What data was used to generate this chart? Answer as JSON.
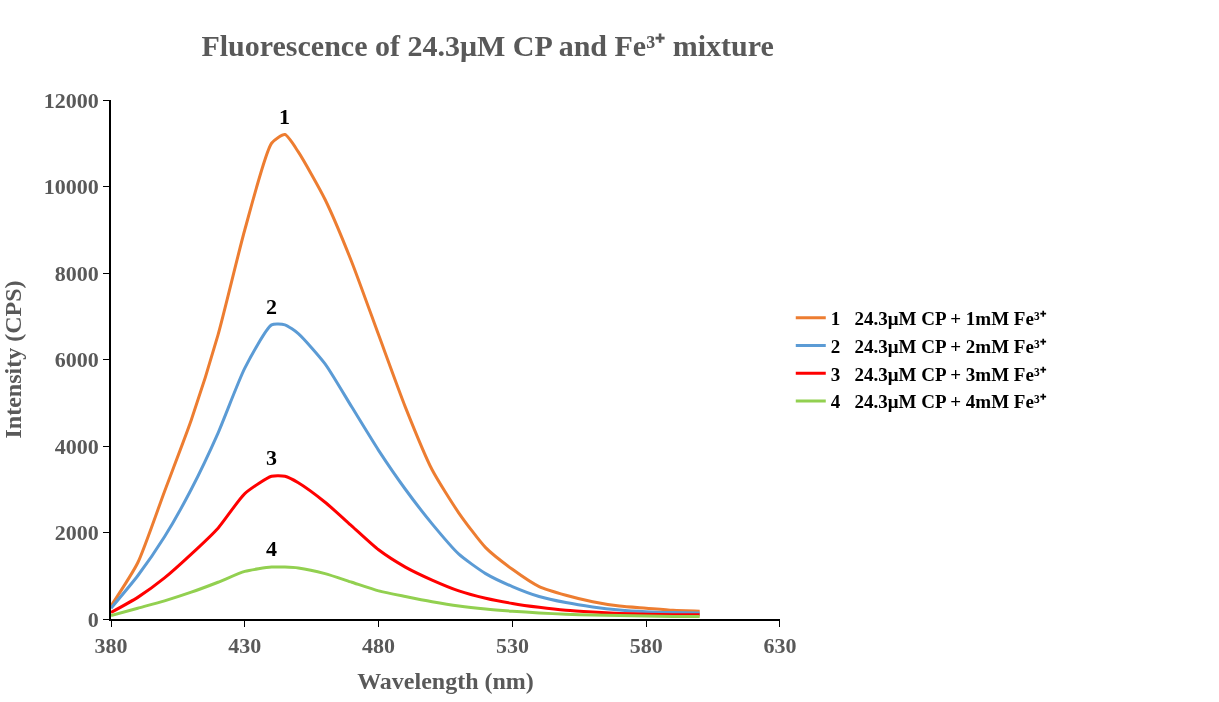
{
  "chart_data": {
    "type": "line",
    "title": "Fluorescence of 24.3μM CP and Fe³⁺ mixture",
    "xlabel": "Wavelength (nm)",
    "ylabel": "Intensity (CPS)",
    "x": [
      380,
      390,
      400,
      410,
      420,
      430,
      440,
      445,
      450,
      460,
      470,
      480,
      490,
      500,
      510,
      520,
      530,
      540,
      550,
      560,
      570,
      580,
      590,
      600
    ],
    "series": [
      {
        "name": "1   24.3μM CP + 1mM Fe³⁺",
        "color": "#ed7d31",
        "values": [
          300,
          1300,
          2950,
          4600,
          6570,
          9000,
          11000,
          11200,
          10800,
          9700,
          8250,
          6570,
          4900,
          3450,
          2450,
          1650,
          1150,
          750,
          550,
          400,
          300,
          250,
          200,
          180
        ]
      },
      {
        "name": "2   24.3μM CP + 2mM Fe³⁺",
        "color": "#5b9bd5",
        "values": [
          250,
          1000,
          1900,
          3000,
          4300,
          5800,
          6800,
          6800,
          6600,
          5900,
          4900,
          3900,
          3000,
          2200,
          1500,
          1050,
          750,
          520,
          380,
          280,
          210,
          170,
          150,
          140
        ]
      },
      {
        "name": "3   24.3μM CP + 3mM Fe³⁺",
        "color": "#ff0000",
        "values": [
          150,
          500,
          950,
          1500,
          2100,
          2900,
          3300,
          3300,
          3150,
          2700,
          2150,
          1600,
          1200,
          900,
          650,
          480,
          360,
          270,
          200,
          160,
          130,
          110,
          100,
          100
        ]
      },
      {
        "name": "4   24.3μM CP + 4mM Fe³⁺",
        "color": "#92d050",
        "values": [
          80,
          250,
          420,
          620,
          850,
          1100,
          1200,
          1200,
          1180,
          1050,
          850,
          650,
          520,
          400,
          300,
          230,
          180,
          140,
          110,
          90,
          80,
          70,
          60,
          60
        ]
      }
    ],
    "annotations": [
      "1",
      "2",
      "3",
      "4"
    ],
    "xlim": [
      380,
      630
    ],
    "xticks": [
      380,
      430,
      480,
      530,
      580,
      630
    ],
    "ylim": [
      0,
      12000
    ],
    "yticks": [
      0,
      2000,
      4000,
      6000,
      8000,
      10000,
      12000
    ],
    "grid": false,
    "legend": "right",
    "marker": "none",
    "line_style": "solid"
  }
}
